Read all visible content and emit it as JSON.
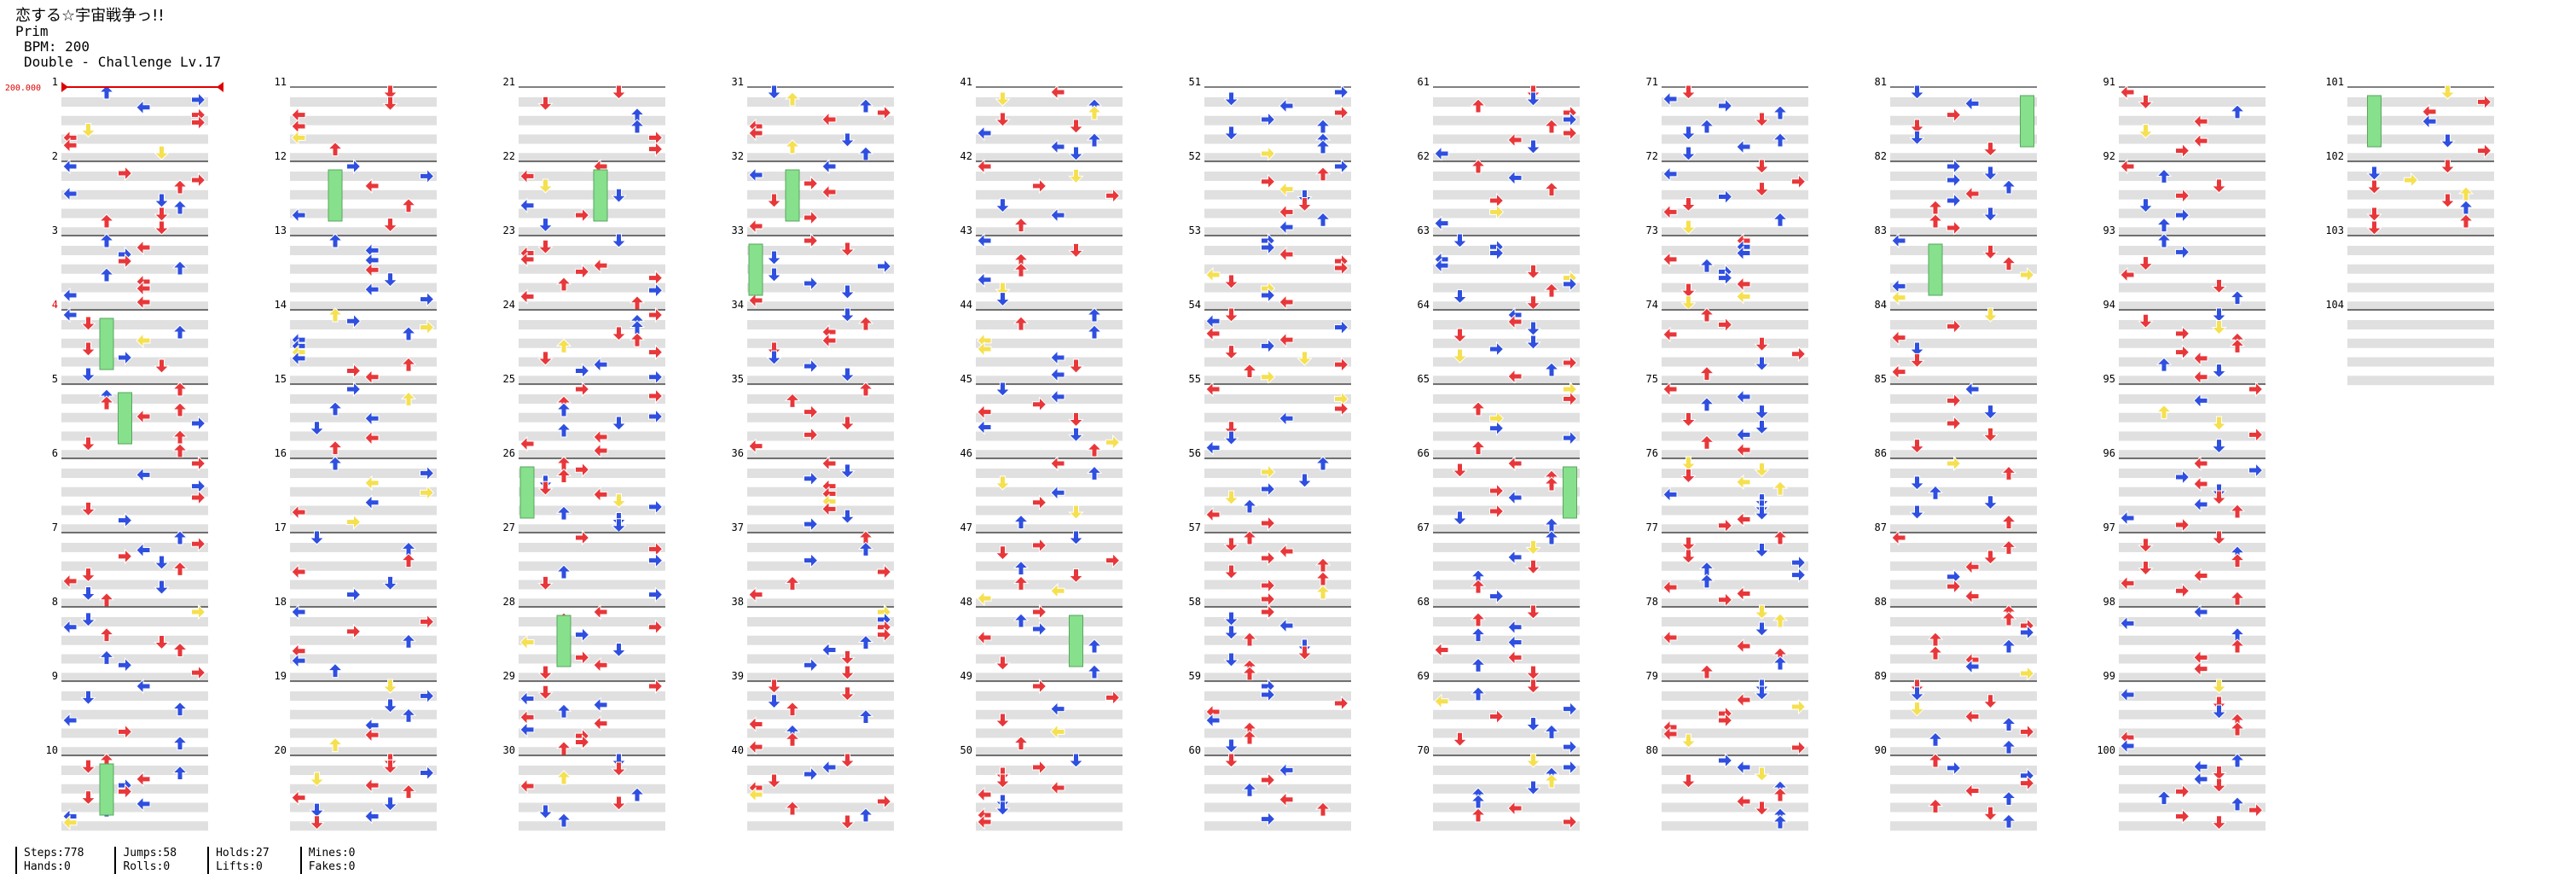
{
  "song": {
    "title": "恋する☆宇宙戦争っ!!",
    "artist": "Prim",
    "bpm": "BPM: 200",
    "difficulty": "Double - Challenge Lv.17"
  },
  "bpm_marker": "200.000",
  "measure_count": 104,
  "measures_per_column": 10,
  "highlighted_measure": 4,
  "colors": {
    "quarter": "#e8373a",
    "eighth": "#2f4fe0",
    "sixteenth": "#f5e050",
    "hold": "#86e08c",
    "band": "#e0e0e0",
    "bpm_marker": "#e00000"
  },
  "notes_sample": [
    "measure 1: quarter L, quarter R",
    "measure 9-10: hold arrows (green)"
  ],
  "stats": {
    "steps": "Steps:778",
    "hands": "Hands:0",
    "jumps": "Jumps:58",
    "rolls": "Rolls:0",
    "holds": "Holds:27",
    "lifts": "Lifts:0",
    "mines": "Mines:0",
    "fakes": "Fakes:0"
  }
}
